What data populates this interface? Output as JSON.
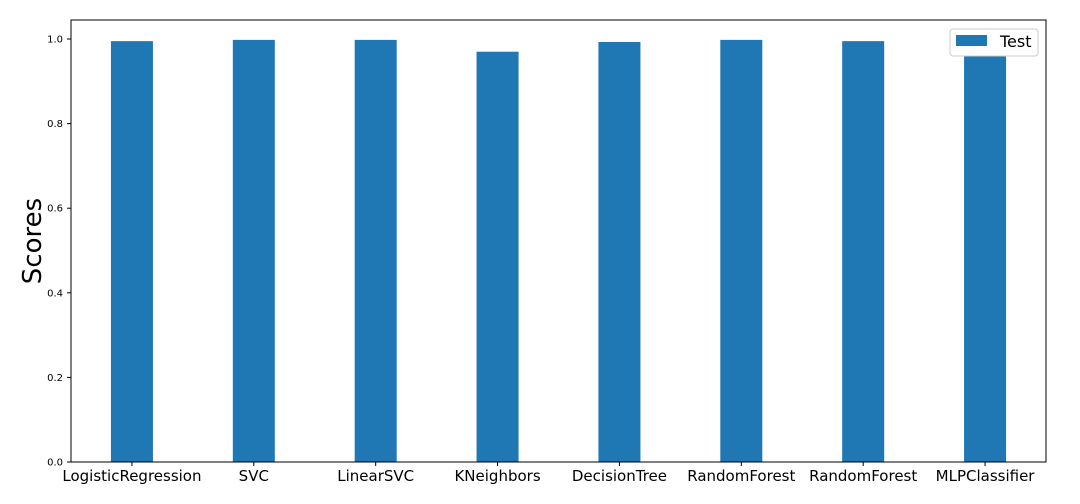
{
  "chart_data": {
    "type": "bar",
    "title": "",
    "xlabel": "",
    "ylabel": "Scores",
    "categories": [
      "LogisticRegression",
      "SVC",
      "LinearSVC",
      "KNeighbors",
      "DecisionTree",
      "RandomForest",
      "RandomForest",
      "MLPClassifier"
    ],
    "series": [
      {
        "name": "Test",
        "color": "#1f77b4",
        "values": [
          0.995,
          0.998,
          0.998,
          0.97,
          0.993,
          0.998,
          0.995,
          0.996
        ]
      }
    ],
    "ylim": [
      0,
      1.045
    ],
    "yticks": [
      "0.0",
      "0.2",
      "0.4",
      "0.6",
      "0.8",
      "1.0"
    ],
    "grid": false,
    "legend": {
      "placement": "top-right"
    }
  }
}
